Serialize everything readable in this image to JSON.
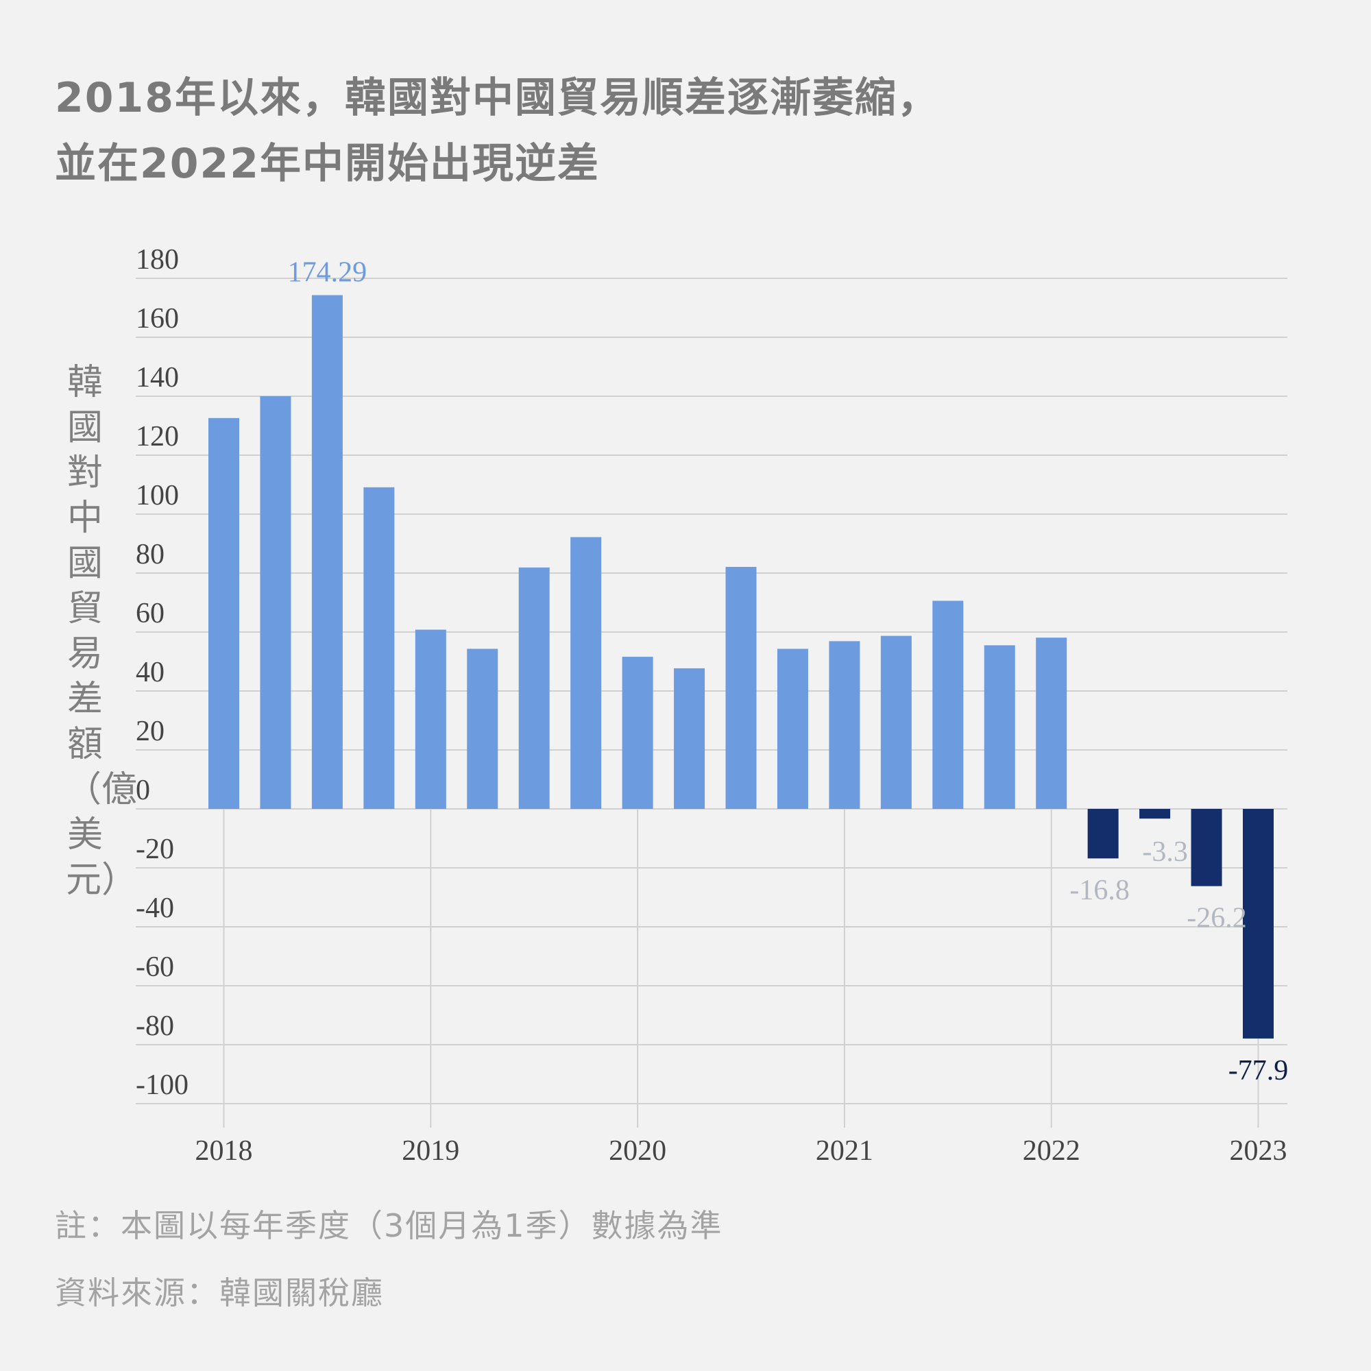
{
  "title_lines": [
    "2018年以來，韓國對中國貿易順差逐漸萎縮，",
    "並在2022年中開始出現逆差"
  ],
  "notes": [
    "註：本圖以每年季度（3個月為1季）數據為準",
    "資料來源：韓國關稅廳"
  ],
  "chart_data": {
    "type": "bar",
    "title": "2018年以來，韓國對中國貿易順差逐漸萎縮，並在2022年中開始出現逆差",
    "ylabel": "韓國對中國貿易差額（億美元）",
    "xlabel": "",
    "x_tick_labels": [
      "2018",
      "2019",
      "2020",
      "2021",
      "2022",
      "2023"
    ],
    "x_tick_bar_index": [
      0,
      4,
      8,
      12,
      16,
      20
    ],
    "values": [
      132.6,
      140.0,
      174.29,
      109.1,
      60.8,
      54.3,
      81.9,
      92.2,
      51.6,
      47.7,
      82.1,
      54.3,
      56.9,
      58.7,
      70.6,
      55.5,
      58.1,
      -16.8,
      -3.3,
      -26.2,
      -77.9
    ],
    "data_labels": [
      {
        "index": 2,
        "text": "174.29",
        "color": "#6d9be0"
      },
      {
        "index": 17,
        "text": "-16.8",
        "color": "#b3b8c0"
      },
      {
        "index": 18,
        "text": "-3.3",
        "color": "#b3b8c0"
      },
      {
        "index": 19,
        "text": "-26.2",
        "color": "#b3b8c0"
      },
      {
        "index": 20,
        "text": "-77.9",
        "color": "#0f1f45"
      }
    ],
    "y_ticks": [
      180,
      160,
      140,
      120,
      100,
      80,
      60,
      40,
      20,
      0,
      -20,
      -40,
      -60,
      -80,
      -100
    ],
    "ylim": [
      -100,
      180
    ],
    "grid": true,
    "colors": {
      "positive": "#6d9be0",
      "negative": "#142d6b",
      "grid": "#d0d0d0"
    }
  }
}
